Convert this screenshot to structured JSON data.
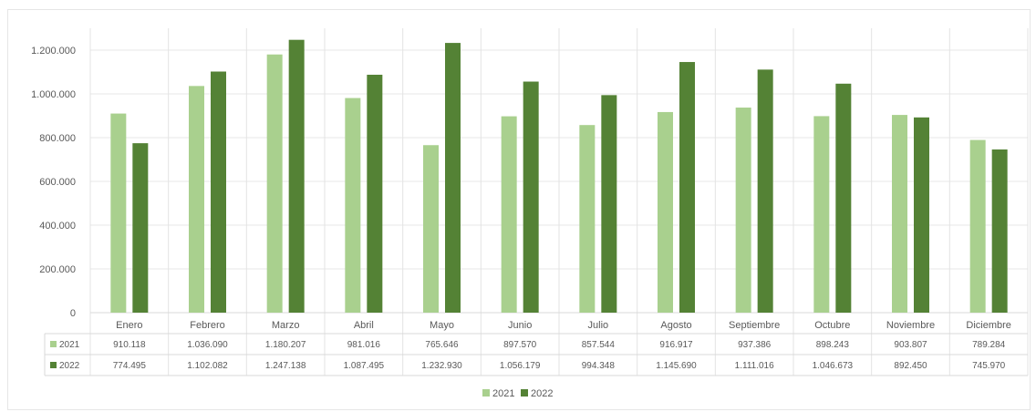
{
  "chart_data": {
    "type": "bar",
    "categories": [
      "Enero",
      "Febrero",
      "Marzo",
      "Abril",
      "Mayo",
      "Junio",
      "Julio",
      "Agosto",
      "Septiembre",
      "Octubre",
      "Noviembre",
      "Diciembre"
    ],
    "series": [
      {
        "name": "2021",
        "color": "#a9d08e",
        "values": [
          910118,
          1036090,
          1180207,
          981016,
          765646,
          897570,
          857544,
          916917,
          937386,
          898243,
          903807,
          789284
        ],
        "labels": [
          "910.118",
          "1.036.090",
          "1.180.207",
          "981.016",
          "765.646",
          "897.570",
          "857.544",
          "916.917",
          "937.386",
          "898.243",
          "903.807",
          "789.284"
        ]
      },
      {
        "name": "2022",
        "color": "#548235",
        "values": [
          774495,
          1102082,
          1247138,
          1087495,
          1232930,
          1056179,
          994348,
          1145690,
          1111016,
          1046673,
          892450,
          745970
        ],
        "labels": [
          "774.495",
          "1.102.082",
          "1.247.138",
          "1.087.495",
          "1.232.930",
          "1.056.179",
          "994.348",
          "1.145.690",
          "1.111.016",
          "1.046.673",
          "892.450",
          "745.970"
        ]
      }
    ],
    "ylim": [
      0,
      1300000
    ],
    "yticks": [
      0,
      200000,
      400000,
      600000,
      800000,
      1000000,
      1200000
    ],
    "ytick_labels": [
      "0",
      "200.000",
      "400.000",
      "600.000",
      "800.000",
      "1.000.000",
      "1.200.000"
    ],
    "grid": true,
    "data_table": true,
    "legend": {
      "position": "bottom",
      "entries": [
        "2021",
        "2022"
      ]
    },
    "title": "",
    "xlabel": "",
    "ylabel": ""
  }
}
